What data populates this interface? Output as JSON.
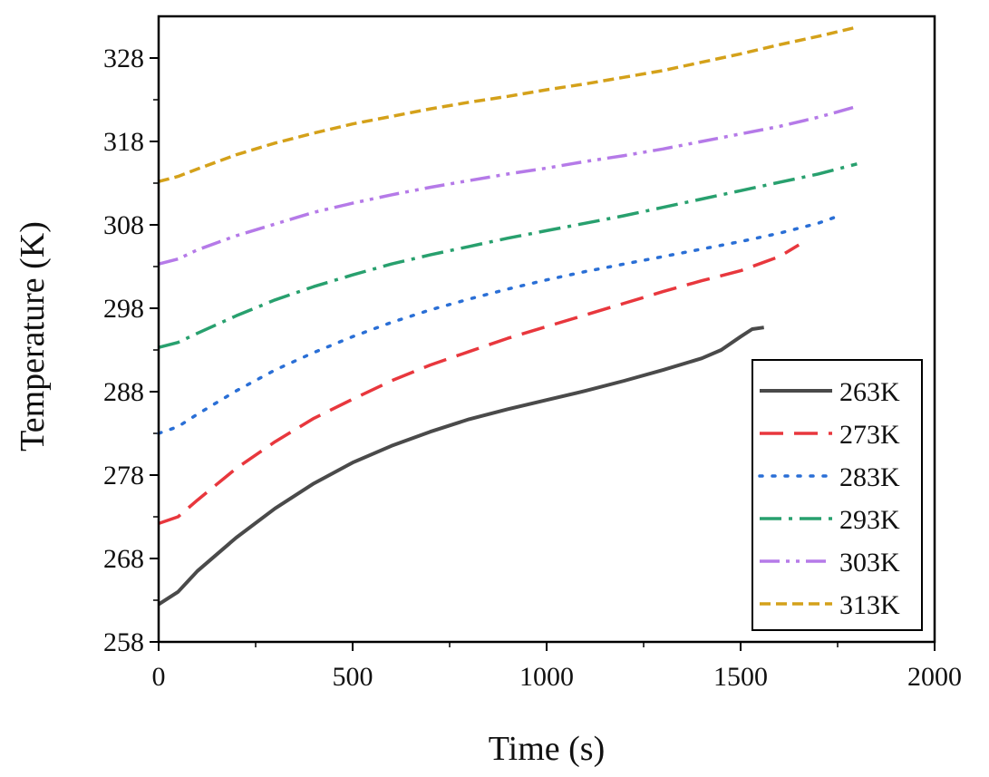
{
  "chart_data": {
    "type": "line",
    "title": "",
    "xlabel": "Time (s)",
    "ylabel": "Temperature (K)",
    "xlim": [
      0,
      2000
    ],
    "ylim": [
      258,
      333
    ],
    "xticks": [
      0,
      500,
      1000,
      1500,
      2000
    ],
    "xtick_labels": [
      "0",
      "500",
      "1000",
      "1500",
      "2000"
    ],
    "yticks": [
      258,
      268,
      278,
      288,
      298,
      308,
      318,
      328
    ],
    "ytick_labels": [
      "258",
      "268",
      "278",
      "288",
      "298",
      "308",
      "318",
      "328"
    ],
    "grid": false,
    "legend_position": "bottom-right",
    "series": [
      {
        "name": "263K",
        "color": "#4a4a4a",
        "dash": "solid",
        "x": [
          0,
          50,
          100,
          200,
          300,
          400,
          500,
          600,
          700,
          800,
          900,
          1000,
          1100,
          1200,
          1300,
          1400,
          1450,
          1500,
          1530,
          1560
        ],
        "y": [
          262.5,
          264,
          266.5,
          270.5,
          274,
          277,
          279.5,
          281.5,
          283.2,
          284.7,
          285.9,
          287,
          288.1,
          289.3,
          290.6,
          292,
          293,
          294.6,
          295.5,
          295.7
        ]
      },
      {
        "name": "273K",
        "color": "#e8373d",
        "dash": "longdash",
        "x": [
          0,
          50,
          100,
          200,
          300,
          400,
          500,
          600,
          700,
          800,
          900,
          1000,
          1100,
          1200,
          1300,
          1400,
          1500,
          1600,
          1650
        ],
        "y": [
          272.2,
          273,
          275,
          278.8,
          282,
          284.8,
          287.1,
          289.3,
          291.2,
          292.8,
          294.4,
          295.8,
          297.2,
          298.6,
          300,
          301.3,
          302.5,
          304.2,
          305.6
        ]
      },
      {
        "name": "283K",
        "color": "#2a6fd6",
        "dash": "dot",
        "x": [
          0,
          50,
          100,
          200,
          300,
          400,
          500,
          600,
          700,
          800,
          900,
          1000,
          1100,
          1200,
          1300,
          1400,
          1500,
          1600,
          1700,
          1760
        ],
        "y": [
          283,
          283.8,
          285.3,
          288.1,
          290.6,
          292.7,
          294.6,
          296.3,
          297.8,
          299.1,
          300.3,
          301.4,
          302.4,
          303.3,
          304.2,
          305.1,
          306,
          307,
          308.2,
          309.2
        ]
      },
      {
        "name": "293K",
        "color": "#28a06e",
        "dash": "dashdot",
        "x": [
          0,
          50,
          100,
          200,
          300,
          400,
          500,
          600,
          700,
          800,
          900,
          1000,
          1100,
          1200,
          1300,
          1400,
          1500,
          1600,
          1700,
          1800
        ],
        "y": [
          293.3,
          293.9,
          295,
          297.1,
          299,
          300.6,
          302,
          303.3,
          304.4,
          305.4,
          306.4,
          307.3,
          308.2,
          309.1,
          310.1,
          311.1,
          312.1,
          313.1,
          314.1,
          315.3
        ]
      },
      {
        "name": "303K",
        "color": "#b57ae8",
        "dash": "dashdotdot",
        "x": [
          0,
          50,
          100,
          200,
          300,
          400,
          500,
          600,
          700,
          800,
          900,
          1000,
          1100,
          1200,
          1300,
          1400,
          1500,
          1600,
          1700,
          1800
        ],
        "y": [
          303.3,
          303.9,
          305,
          306.7,
          308.1,
          309.5,
          310.6,
          311.6,
          312.5,
          313.3,
          314.1,
          314.8,
          315.6,
          316.3,
          317.1,
          318,
          318.9,
          319.8,
          320.9,
          322.2
        ]
      },
      {
        "name": "313K",
        "color": "#d4a11a",
        "dash": "shortdash",
        "x": [
          0,
          50,
          100,
          200,
          300,
          400,
          500,
          600,
          700,
          800,
          900,
          1000,
          1100,
          1200,
          1300,
          1400,
          1500,
          1600,
          1700,
          1800
        ],
        "y": [
          313.2,
          313.8,
          314.7,
          316.4,
          317.8,
          319,
          320.1,
          321,
          321.9,
          322.7,
          323.4,
          324.2,
          324.9,
          325.7,
          326.5,
          327.5,
          328.5,
          329.6,
          330.6,
          331.7
        ]
      }
    ]
  }
}
